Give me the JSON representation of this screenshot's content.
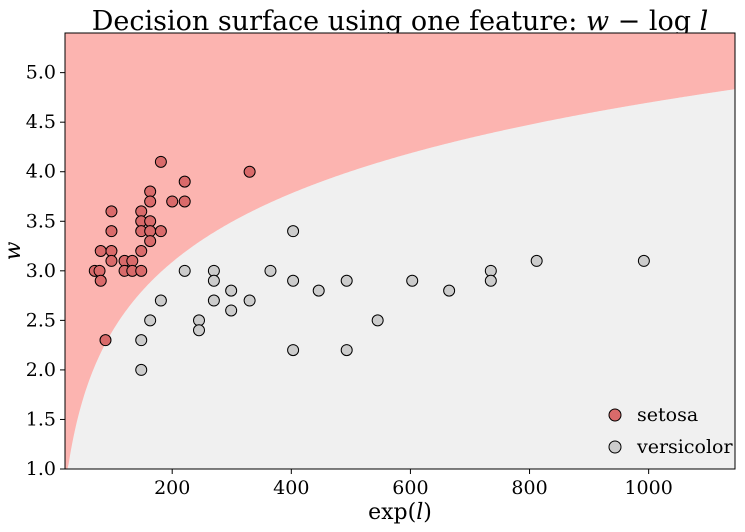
{
  "chart_data": {
    "type": "scatter",
    "title_text": "Decision surface using one feature: ",
    "title_math_a": "w",
    "title_math_minus": " − log ",
    "title_math_b": "l",
    "xlabel_prefix": "exp(",
    "xlabel_var": "l",
    "xlabel_suffix": ")",
    "ylabel": "w",
    "xlim": [
      20,
      1145
    ],
    "ylim": [
      1.0,
      5.4
    ],
    "x_ticks": [
      200,
      400,
      600,
      800,
      1000
    ],
    "x_tick_labels": [
      "200",
      "400",
      "600",
      "800",
      "1000"
    ],
    "y_ticks": [
      1.0,
      1.5,
      2.0,
      2.5,
      3.0,
      3.5,
      4.0,
      4.5,
      5.0
    ],
    "y_tick_labels": [
      "1.0",
      "1.5",
      "2.0",
      "2.5",
      "3.0",
      "3.5",
      "4.0",
      "4.5",
      "5.0"
    ],
    "decision_boundary": {
      "equation": "w = log(exp(l)) - offset",
      "offset": 2.21
    },
    "region_colors": {
      "setosa": "#fcb4b0",
      "versicolor": "#f0f0f0"
    },
    "legend_position": "lower-right",
    "grid": false,
    "series": [
      {
        "name": "setosa",
        "color": "#d96a6a",
        "points": [
          [
            70,
            3.0
          ],
          [
            78,
            3.0
          ],
          [
            80,
            3.2
          ],
          [
            80,
            2.9
          ],
          [
            88,
            2.3
          ],
          [
            98,
            3.6
          ],
          [
            98,
            3.4
          ],
          [
            98,
            3.2
          ],
          [
            98,
            3.1
          ],
          [
            120,
            3.1
          ],
          [
            120,
            3.0
          ],
          [
            133,
            3.1
          ],
          [
            133,
            3.0
          ],
          [
            148,
            3.6
          ],
          [
            148,
            3.5
          ],
          [
            148,
            3.4
          ],
          [
            148,
            3.2
          ],
          [
            148,
            3.0
          ],
          [
            163,
            3.8
          ],
          [
            163,
            3.7
          ],
          [
            163,
            3.5
          ],
          [
            163,
            3.4
          ],
          [
            163,
            3.3
          ],
          [
            181,
            4.1
          ],
          [
            181,
            3.4
          ],
          [
            200,
            3.7
          ],
          [
            221,
            3.9
          ],
          [
            221,
            3.7
          ],
          [
            330,
            4.0
          ]
        ]
      },
      {
        "name": "versicolor",
        "color": "#cccccc",
        "points": [
          [
            148,
            2.3
          ],
          [
            148,
            2.0
          ],
          [
            163,
            2.5
          ],
          [
            181,
            2.7
          ],
          [
            221,
            3.0
          ],
          [
            245,
            2.5
          ],
          [
            245,
            2.4
          ],
          [
            270,
            3.0
          ],
          [
            270,
            2.9
          ],
          [
            270,
            2.7
          ],
          [
            299,
            2.8
          ],
          [
            299,
            2.6
          ],
          [
            330,
            2.7
          ],
          [
            365,
            3.0
          ],
          [
            403,
            3.4
          ],
          [
            403,
            2.9
          ],
          [
            403,
            2.2
          ],
          [
            446,
            2.8
          ],
          [
            493,
            2.9
          ],
          [
            493,
            2.2
          ],
          [
            545,
            2.5
          ],
          [
            603,
            2.9
          ],
          [
            665,
            2.8
          ],
          [
            735,
            3.0
          ],
          [
            735,
            2.9
          ],
          [
            812,
            3.1
          ],
          [
            992,
            3.1
          ]
        ]
      }
    ]
  }
}
